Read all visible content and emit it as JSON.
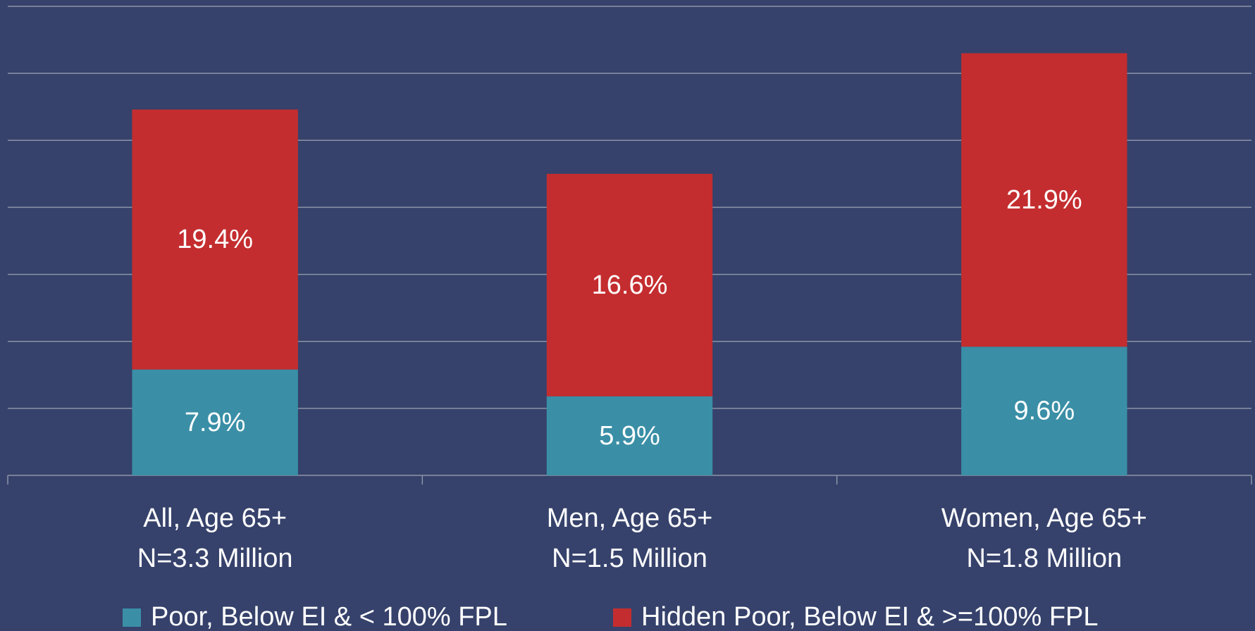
{
  "chart_data": {
    "type": "stacked_bar",
    "categories": [
      [
        "All, Age 65+",
        "N=3.3 Million"
      ],
      [
        "Men, Age 65+",
        "N=1.5 Million"
      ],
      [
        "Women, Age 65+",
        "N=1.8 Million"
      ]
    ],
    "series": [
      {
        "name": "Poor, Below EI & < 100% FPL",
        "color": "#3a8fa6",
        "values": [
          7.9,
          5.9,
          9.6
        ],
        "value_labels": [
          "7.9%",
          "5.9%",
          "9.6%"
        ]
      },
      {
        "name": "Hidden Poor, Below EI & >=100% FPL",
        "color": "#c42d2f",
        "values": [
          19.4,
          16.6,
          21.9
        ],
        "value_labels": [
          "19.4%",
          "16.6%",
          "21.9%"
        ]
      }
    ],
    "ylim": [
      0,
      35
    ],
    "yticks": [
      0,
      5,
      10,
      15,
      20,
      25,
      30,
      35
    ],
    "grid": true,
    "legend": "bottom"
  }
}
